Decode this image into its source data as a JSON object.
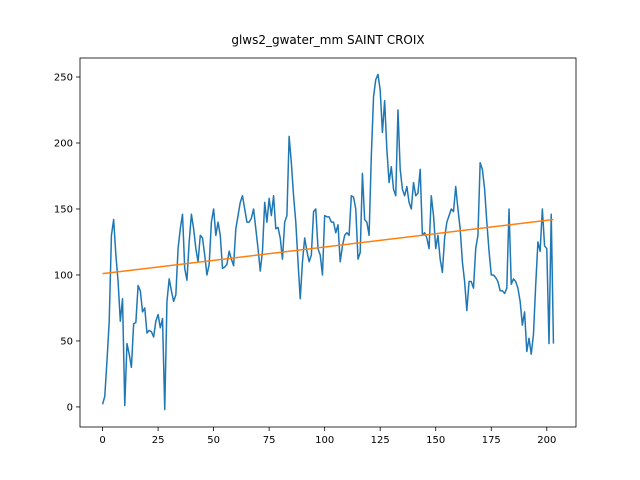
{
  "chart_data": {
    "type": "line",
    "title": "glws2_gwater_mm SAINT CROIX",
    "xlim": [
      -10.15,
      213.15
    ],
    "ylim": [
      -15.2,
      264.4
    ],
    "xticks": [
      0,
      25,
      50,
      75,
      100,
      125,
      150,
      175,
      200
    ],
    "yticks": [
      0,
      50,
      100,
      150,
      200,
      250
    ],
    "grid": false,
    "series": [
      {
        "color": "#1f77b4",
        "x": [
          0,
          1,
          2,
          3,
          4,
          5,
          6,
          7,
          8,
          9,
          10,
          11,
          12,
          13,
          14,
          15,
          16,
          17,
          18,
          19,
          20,
          21,
          22,
          23,
          24,
          25,
          26,
          27,
          28,
          29,
          30,
          31,
          32,
          33,
          34,
          35,
          36,
          37,
          38,
          39,
          40,
          41,
          42,
          43,
          44,
          45,
          46,
          47,
          48,
          49,
          50,
          51,
          52,
          53,
          54,
          55,
          56,
          57,
          58,
          59,
          60,
          61,
          62,
          63,
          64,
          65,
          66,
          67,
          68,
          69,
          70,
          71,
          72,
          73,
          74,
          75,
          76,
          77,
          78,
          79,
          80,
          81,
          82,
          83,
          84,
          85,
          86,
          87,
          88,
          89,
          90,
          91,
          92,
          93,
          94,
          95,
          96,
          97,
          98,
          99,
          100,
          101,
          102,
          103,
          104,
          105,
          106,
          107,
          108,
          109,
          110,
          111,
          112,
          113,
          114,
          115,
          116,
          117,
          118,
          119,
          120,
          121,
          122,
          123,
          124,
          125,
          126,
          127,
          128,
          129,
          130,
          131,
          132,
          133,
          134,
          135,
          136,
          137,
          138,
          139,
          140,
          141,
          142,
          143,
          144,
          145,
          146,
          147,
          148,
          149,
          150,
          151,
          152,
          153,
          154,
          155,
          156,
          157,
          158,
          159,
          160,
          161,
          162,
          163,
          164,
          165,
          166,
          167,
          168,
          169,
          170,
          171,
          172,
          173,
          174,
          175,
          176,
          177,
          178,
          179,
          180,
          181,
          182,
          183,
          184,
          185,
          186,
          187,
          188,
          189,
          190,
          191,
          192,
          193,
          194,
          195,
          196,
          197,
          198,
          199,
          200,
          201,
          202,
          203
        ],
        "values": [
          2,
          8,
          35,
          65,
          130,
          142,
          115,
          95,
          65,
          82,
          1,
          48,
          40,
          30,
          63,
          64,
          92,
          88,
          72,
          75,
          56,
          58,
          57,
          53,
          65,
          70,
          60,
          67,
          -2,
          80,
          97,
          88,
          80,
          85,
          120,
          135,
          146,
          105,
          96,
          125,
          146,
          135,
          120,
          110,
          130,
          128,
          115,
          100,
          108,
          140,
          150,
          130,
          140,
          130,
          105,
          106,
          108,
          118,
          112,
          107,
          135,
          145,
          155,
          160,
          150,
          140,
          140,
          143,
          150,
          135,
          120,
          103,
          118,
          155,
          140,
          158,
          145,
          160,
          135,
          136,
          128,
          112,
          140,
          145,
          205,
          185,
          160,
          140,
          110,
          82,
          110,
          128,
          118,
          110,
          115,
          148,
          150,
          120,
          115,
          100,
          145,
          144,
          144,
          140,
          140,
          132,
          138,
          110,
          122,
          130,
          132,
          130,
          160,
          159,
          150,
          112,
          117,
          177,
          142,
          140,
          130,
          190,
          235,
          248,
          252,
          240,
          208,
          232,
          195,
          170,
          182,
          165,
          160,
          225,
          180,
          165,
          160,
          167,
          155,
          150,
          170,
          160,
          162,
          180,
          130,
          132,
          128,
          120,
          160,
          145,
          120,
          130,
          112,
          102,
          128,
          140,
          145,
          150,
          148,
          167,
          150,
          135,
          110,
          95,
          73,
          95,
          95,
          90,
          120,
          130,
          185,
          180,
          165,
          140,
          118,
          100,
          100,
          98,
          95,
          88,
          88,
          86,
          90,
          150,
          93,
          97,
          95,
          90,
          80,
          62,
          72,
          42,
          52,
          40,
          55,
          92,
          125,
          118,
          150,
          122,
          120,
          48,
          146,
          48
        ]
      },
      {
        "color": "#ff7f0e",
        "x": [
          0,
          203
        ],
        "values": [
          101,
          142
        ]
      }
    ]
  }
}
